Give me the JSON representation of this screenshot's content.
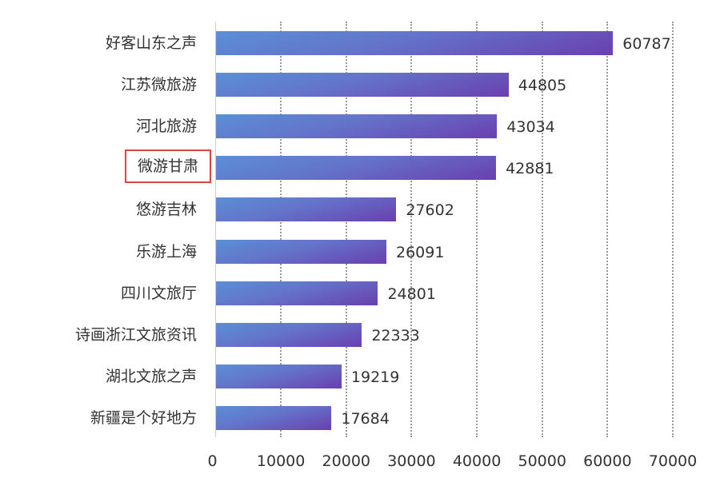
{
  "chart_data": {
    "type": "bar",
    "orientation": "horizontal",
    "title": "",
    "xlabel": "",
    "ylabel": "",
    "categories": [
      "好客山东之声",
      "江苏微旅游",
      "河北旅游",
      "微游甘肃",
      "悠游吉林",
      "乐游上海",
      "四川文旅厅",
      "诗画浙江文旅资讯",
      "湖北文旅之声",
      "新疆是个好地方"
    ],
    "values": [
      60787,
      44805,
      43034,
      42881,
      27602,
      26091,
      24801,
      22333,
      19219,
      17684
    ],
    "value_labels": [
      "60787",
      "44805",
      "43034",
      "42881",
      "27602",
      "26091",
      "24801",
      "22333",
      "19219",
      "17684"
    ],
    "highlighted_category": "微游甘肃",
    "xlim": [
      0,
      70000
    ],
    "x_ticks": [
      "0",
      "10000",
      "20000",
      "30000",
      "40000",
      "50000",
      "60000",
      "70000"
    ],
    "grid": "vertical dotted",
    "legend": "none"
  },
  "colors": {
    "bar_gradient_start": "#5b8fd6",
    "bar_gradient_end": "#6a3fb0",
    "highlight_box": "#e04545",
    "gridline": "#9a9a9a",
    "text": "#333333"
  }
}
